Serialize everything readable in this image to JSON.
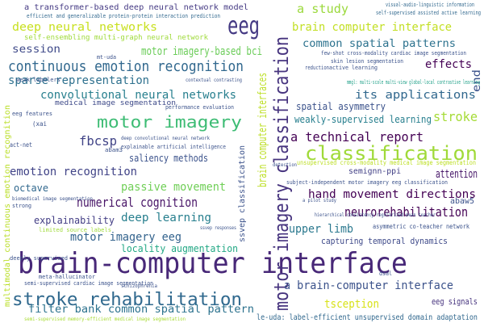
{
  "words": [
    "brain-computer interface",
    "eeg",
    "motor imagery classification",
    "classification",
    "stroke rehabilitation",
    "continuous emotion recognition",
    "motor imagery",
    "a technical report",
    "deep neural networks",
    "brain computer interface",
    "a study",
    "common spatial patterns",
    "motor imagery-based bci",
    "session",
    "sparse representation",
    "convolutional neural networks",
    "its applications",
    "stroke",
    "effects",
    "end",
    "spatial asymmetry",
    "weakly-supervised learning",
    "fbcsp",
    "saliency methods",
    "emotion recognition",
    "attention",
    "semignn-ppi",
    "passive movement",
    "hand movement directions",
    "octave",
    "numerical cognition",
    "neurorehabilitation",
    "explainability",
    "deep learning",
    "abaw5",
    "upper limb",
    "motor imagery eeg",
    "locality augmentation",
    "capturing temporal dynamics",
    "a brain-computer interface",
    "filter bank common spatial pattern",
    "tsception",
    "eeg signals",
    "le-uda: label-efficient unsupervised domain adaptation",
    "ssvep classification",
    "brain computer interfaces",
    "a transformer-based deep neural network model",
    "efficient and generalizable protein-protein interaction prediction",
    "self-ensembling multi-graph neural network",
    "medical image segmentation",
    "visual-audio-linguistic information",
    "self-supervised assisted active learning",
    "multimodal continuous emotion recognition",
    "deeply supervised",
    "meta-hallucinator",
    "semi-supervised cardiac image segmentation",
    "semi-supervised memory-efficient medical image segmentation",
    "biomedical image segmentation",
    "explainable artificial intelligence",
    "deep convolutional neural network",
    "limited source labels",
    "subject-independent motor imagery eeg classification",
    "hierarchical consistency regularized mean teacher",
    "asymmetric co-teacher network",
    "unsupervised cross-modality medical image segmentation",
    "few-shot cross-modality cardiac image segmentation",
    "skin lesion segmentation",
    "mmgl: multi-scale multi-view global-local contrastive learning",
    "active learning",
    "reduction",
    "act-net",
    "(xai",
    "weak labelers",
    "mt-uda",
    "abam3",
    "performance evaluation",
    "contextual contrasting",
    "strong",
    "schizophrenia",
    "dsal",
    "a pilot study",
    "eeg features",
    "detection",
    "ssvep responses"
  ]
}
